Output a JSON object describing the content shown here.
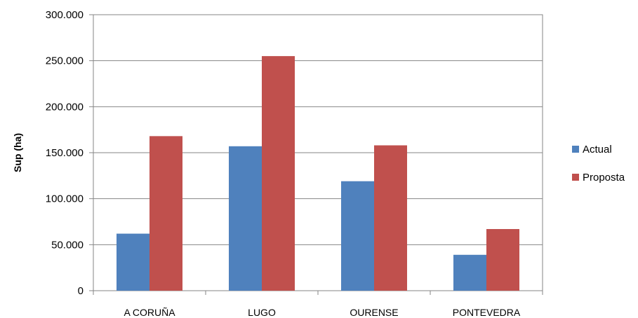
{
  "chart_data": {
    "type": "bar",
    "title": "",
    "xlabel": "",
    "ylabel": "Sup (ha)",
    "categories": [
      "A CORUÑA",
      "LUGO",
      "OURENSE",
      "PONTEVEDRA"
    ],
    "series": [
      {
        "name": "Actual",
        "color": "#4F81BD",
        "values": [
          62000,
          157000,
          119000,
          39000
        ]
      },
      {
        "name": "Proposta",
        "color": "#C0504D",
        "values": [
          168000,
          255000,
          158000,
          67000
        ]
      }
    ],
    "ylim": [
      0,
      300000
    ],
    "yticks": [
      0,
      50000,
      100000,
      150000,
      200000,
      250000,
      300000
    ],
    "ytick_labels": [
      "0",
      "50.000",
      "100.000",
      "150.000",
      "200.000",
      "250.000",
      "300.000"
    ],
    "grid": true,
    "legend_position": "right"
  }
}
